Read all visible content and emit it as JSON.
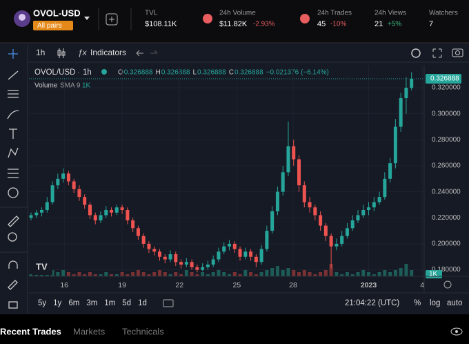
{
  "header": {
    "pair": "OVOL-USD",
    "badge": "All pairs",
    "stats": [
      {
        "label": "TVL",
        "value": "$108.11K"
      },
      {
        "label": "24h Volume",
        "value": "$11.82K",
        "change": "-2.93%"
      },
      {
        "label": "24h Trades",
        "value": "45",
        "change": "-10%"
      },
      {
        "label": "24h Views",
        "value": "21",
        "change": "+5%"
      },
      {
        "label": "Watchers",
        "value": "7"
      }
    ]
  },
  "toolbar": {
    "interval": "1h",
    "indicators": "Indicators"
  },
  "chart": {
    "type": "candlestick",
    "symbol": "OVOL/USD",
    "interval": "1h",
    "ohlc": [
      {
        "label": "O",
        "value": 0.326888
      },
      {
        "label": "H",
        "value": 0.326888
      },
      {
        "label": "L",
        "value": 0.326888
      },
      {
        "label": "C",
        "value": 0.326888
      }
    ],
    "change": "−0.021376 (−6.14%)",
    "volume_label": "Volume",
    "volume_sma": "SMA 9",
    "volume_value": "1K",
    "volume_axis_label": "1K",
    "last_price": 0.326888,
    "ylim": [
      0.175,
      0.337
    ],
    "yticks": [
      {
        "value": 0.18,
        "label": "0.180000"
      },
      {
        "value": 0.2,
        "label": "0.200000"
      },
      {
        "value": 0.22,
        "label": "0.220000"
      },
      {
        "value": 0.24,
        "label": "0.240000"
      },
      {
        "value": 0.26,
        "label": "0.260000"
      },
      {
        "value": 0.28,
        "label": "0.280000"
      },
      {
        "value": 0.3,
        "label": "0.300000"
      },
      {
        "value": 0.32,
        "label": "0.320000"
      }
    ],
    "xlim": [
      0,
      74
    ],
    "xticks": [
      {
        "value": 6.2,
        "label": "16"
      },
      {
        "value": 17,
        "label": "19"
      },
      {
        "value": 27.7,
        "label": "22"
      },
      {
        "value": 38.4,
        "label": "25"
      },
      {
        "value": 48.9,
        "label": "28"
      },
      {
        "value": 63,
        "label": "2023"
      },
      {
        "value": 73,
        "label": "4"
      }
    ],
    "candles": [
      [
        0.22,
        0.224,
        0.218,
        0.222
      ],
      [
        0.222,
        0.226,
        0.22,
        0.224
      ],
      [
        0.224,
        0.228,
        0.221,
        0.226
      ],
      [
        0.226,
        0.236,
        0.224,
        0.232
      ],
      [
        0.232,
        0.248,
        0.23,
        0.245
      ],
      [
        0.245,
        0.254,
        0.242,
        0.25
      ],
      [
        0.25,
        0.258,
        0.247,
        0.254
      ],
      [
        0.254,
        0.256,
        0.245,
        0.248
      ],
      [
        0.248,
        0.25,
        0.239,
        0.242
      ],
      [
        0.242,
        0.245,
        0.233,
        0.236
      ],
      [
        0.236,
        0.238,
        0.227,
        0.23
      ],
      [
        0.23,
        0.232,
        0.219,
        0.222
      ],
      [
        0.222,
        0.224,
        0.215,
        0.218
      ],
      [
        0.218,
        0.225,
        0.216,
        0.222
      ],
      [
        0.222,
        0.229,
        0.22,
        0.226
      ],
      [
        0.226,
        0.228,
        0.221,
        0.224
      ],
      [
        0.224,
        0.23,
        0.222,
        0.228
      ],
      [
        0.228,
        0.23,
        0.223,
        0.226
      ],
      [
        0.226,
        0.228,
        0.215,
        0.218
      ],
      [
        0.218,
        0.22,
        0.209,
        0.212
      ],
      [
        0.212,
        0.214,
        0.203,
        0.206
      ],
      [
        0.206,
        0.208,
        0.197,
        0.2
      ],
      [
        0.2,
        0.202,
        0.193,
        0.196
      ],
      [
        0.196,
        0.198,
        0.191,
        0.194
      ],
      [
        0.194,
        0.196,
        0.187,
        0.19
      ],
      [
        0.19,
        0.192,
        0.185,
        0.188
      ],
      [
        0.188,
        0.195,
        0.186,
        0.192
      ],
      [
        0.192,
        0.194,
        0.183,
        0.186
      ],
      [
        0.186,
        0.188,
        0.181,
        0.184
      ],
      [
        0.184,
        0.189,
        0.182,
        0.186
      ],
      [
        0.186,
        0.188,
        0.18,
        0.182
      ],
      [
        0.182,
        0.184,
        0.178,
        0.18
      ],
      [
        0.18,
        0.185,
        0.179,
        0.182
      ],
      [
        0.182,
        0.187,
        0.18,
        0.184
      ],
      [
        0.184,
        0.191,
        0.182,
        0.188
      ],
      [
        0.188,
        0.197,
        0.186,
        0.194
      ],
      [
        0.194,
        0.201,
        0.192,
        0.198
      ],
      [
        0.198,
        0.203,
        0.195,
        0.2
      ],
      [
        0.2,
        0.202,
        0.193,
        0.196
      ],
      [
        0.196,
        0.198,
        0.187,
        0.19
      ],
      [
        0.19,
        0.197,
        0.188,
        0.194
      ],
      [
        0.194,
        0.196,
        0.187,
        0.19
      ],
      [
        0.19,
        0.192,
        0.182,
        0.186
      ],
      [
        0.186,
        0.199,
        0.184,
        0.196
      ],
      [
        0.196,
        0.214,
        0.194,
        0.21
      ],
      [
        0.21,
        0.229,
        0.208,
        0.225
      ],
      [
        0.225,
        0.244,
        0.222,
        0.24
      ],
      [
        0.24,
        0.26,
        0.237,
        0.255
      ],
      [
        0.255,
        0.294,
        0.252,
        0.275
      ],
      [
        0.275,
        0.28,
        0.26,
        0.265
      ],
      [
        0.265,
        0.268,
        0.24,
        0.245
      ],
      [
        0.245,
        0.248,
        0.228,
        0.232
      ],
      [
        0.232,
        0.236,
        0.224,
        0.228
      ],
      [
        0.228,
        0.23,
        0.218,
        0.222
      ],
      [
        0.222,
        0.225,
        0.21,
        0.214
      ],
      [
        0.214,
        0.216,
        0.202,
        0.206
      ],
      [
        0.206,
        0.208,
        0.181,
        0.198
      ],
      [
        0.198,
        0.204,
        0.195,
        0.2
      ],
      [
        0.2,
        0.21,
        0.198,
        0.206
      ],
      [
        0.206,
        0.216,
        0.204,
        0.212
      ],
      [
        0.212,
        0.222,
        0.21,
        0.218
      ],
      [
        0.218,
        0.226,
        0.216,
        0.222
      ],
      [
        0.222,
        0.23,
        0.22,
        0.226
      ],
      [
        0.226,
        0.232,
        0.222,
        0.228
      ],
      [
        0.228,
        0.236,
        0.225,
        0.232
      ],
      [
        0.232,
        0.24,
        0.23,
        0.236
      ],
      [
        0.236,
        0.255,
        0.234,
        0.25
      ],
      [
        0.25,
        0.266,
        0.247,
        0.262
      ],
      [
        0.262,
        0.296,
        0.258,
        0.29
      ],
      [
        0.29,
        0.316,
        0.286,
        0.312
      ],
      [
        0.312,
        0.328,
        0.3,
        0.32
      ],
      [
        0.32,
        0.332,
        0.318,
        0.326888
      ]
    ],
    "volumes": [
      1,
      2,
      1,
      2,
      3,
      2,
      3,
      2,
      1,
      2,
      1,
      2,
      1,
      1,
      2,
      1,
      1,
      2,
      1,
      2,
      3,
      2,
      1,
      2,
      3,
      2,
      1,
      2,
      1,
      3,
      2,
      1,
      2,
      1,
      2,
      3,
      2,
      1,
      2,
      1,
      3,
      2,
      1,
      2,
      3,
      4,
      5,
      3,
      4,
      3,
      2,
      3,
      2,
      1,
      2,
      3,
      6,
      2,
      1,
      2,
      1,
      2,
      3,
      2,
      1,
      2,
      3,
      2,
      3,
      4,
      6,
      3
    ]
  },
  "footer": {
    "ranges": [
      "5y",
      "1y",
      "6m",
      "3m",
      "1m",
      "5d",
      "1d"
    ],
    "time": "21:04:22 (UTC)",
    "percent": "%",
    "log": "log",
    "auto": "auto"
  },
  "tabs": [
    "Recent Trades",
    "Markets",
    "Technicals"
  ]
}
